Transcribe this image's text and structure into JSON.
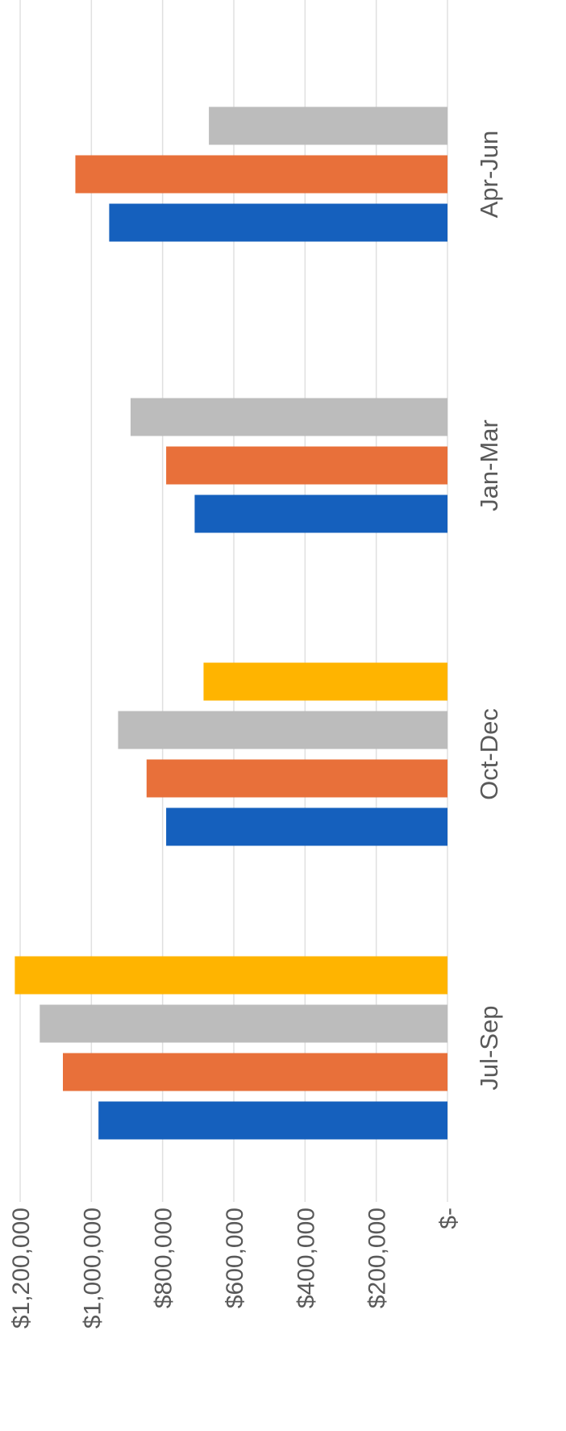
{
  "chart_data": {
    "type": "bar",
    "orientation": "rotated-90-clockwise",
    "categories": [
      "Jul-Sep",
      "Oct-Dec",
      "Jan-Mar",
      "Apr-Jun"
    ],
    "series": [
      {
        "color": "#1560bd",
        "values": [
          980000,
          790000,
          710000,
          950000
        ]
      },
      {
        "color": "#e8703a",
        "values": [
          1080000,
          845000,
          790000,
          1045000
        ]
      },
      {
        "color": "#bcbcbc",
        "values": [
          1145000,
          925000,
          890000,
          670000
        ]
      },
      {
        "color": "#ffb400",
        "values": [
          1215000,
          685000,
          null,
          null
        ]
      }
    ],
    "ylim": [
      0,
      1200000
    ],
    "yticks": [
      0,
      200000,
      400000,
      600000,
      800000,
      1000000,
      1200000
    ],
    "ytick_labels": [
      "$-",
      "$200,000",
      "$400,000",
      "$600,000",
      "$800,000",
      "$1,000,000",
      "$1,200,000"
    ],
    "grid": true,
    "title": "",
    "xlabel": "",
    "ylabel": ""
  }
}
